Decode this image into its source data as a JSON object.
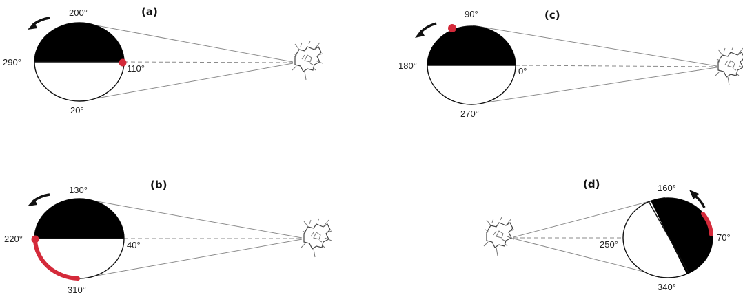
{
  "panels": {
    "a": {
      "label": "(a)",
      "angles": {
        "top": "200°",
        "bottom": "20°",
        "left": "290°",
        "right": "110°"
      }
    },
    "b": {
      "label": "(b)",
      "angles": {
        "top": "130°",
        "bottom": "310°",
        "left": "220°",
        "right": "40°"
      }
    },
    "c": {
      "label": "(c)",
      "angles": {
        "top": "90°",
        "bottom": "270°",
        "left": "180°",
        "right": "0°"
      }
    },
    "d": {
      "label": "(d)",
      "angles": {
        "top": "160°",
        "bottom": "340°",
        "left": "250°",
        "right": "70°"
      }
    }
  },
  "colors": {
    "marker": "#d42a3a",
    "shadow": "#000000",
    "ray": "#8a8a8a"
  }
}
